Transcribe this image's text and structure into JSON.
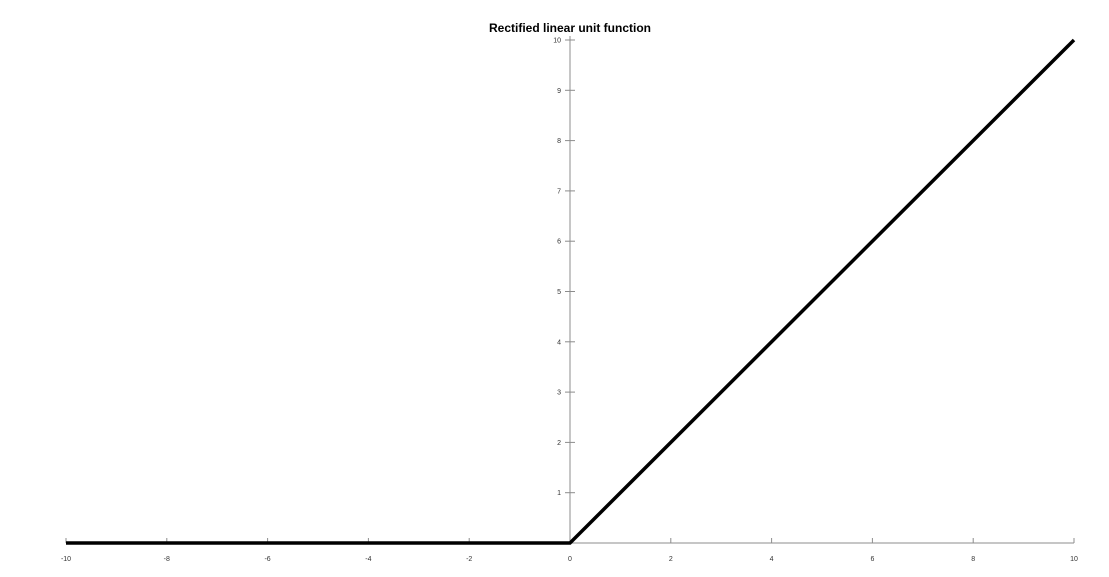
{
  "chart_data": {
    "type": "line",
    "title": "Rectified linear unit function",
    "xlabel": "",
    "ylabel": "",
    "xlim": [
      -10,
      10
    ],
    "ylim": [
      0,
      10
    ],
    "x_ticks": [
      -10,
      -8,
      -6,
      -4,
      -2,
      0,
      2,
      4,
      6,
      8,
      10
    ],
    "y_ticks": [
      1,
      2,
      3,
      4,
      5,
      6,
      7,
      8,
      9,
      10
    ],
    "grid": false,
    "legend": "none",
    "series": [
      {
        "x": [
          -10,
          0,
          10
        ],
        "y": [
          0,
          0,
          10
        ],
        "color": "#000000"
      }
    ]
  }
}
